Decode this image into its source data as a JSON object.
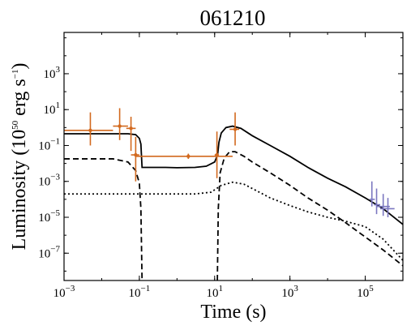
{
  "chart_data": {
    "type": "line",
    "title": "061210",
    "xlabel": "Time (s)",
    "ylabel": "Luminosity (10^50 erg s^-1)",
    "ylabel_parts": {
      "prefix": "Luminosity (10",
      "exp1": "50",
      "mid": " erg s",
      "exp2": "−1",
      "suffix": ")"
    },
    "x_scale": "log",
    "y_scale": "log",
    "xlim": [
      0.001,
      1000000
    ],
    "ylim": [
      3e-09,
      200000
    ],
    "grid": false,
    "legend": "none",
    "x_ticks": [
      {
        "base": "10",
        "exp": "−3",
        "value": 0.001
      },
      {
        "base": "10",
        "exp": "−1",
        "value": 0.1
      },
      {
        "base": "10",
        "exp": "1",
        "value": 10
      },
      {
        "base": "10",
        "exp": "3",
        "value": 1000
      },
      {
        "base": "10",
        "exp": "5",
        "value": 100000
      }
    ],
    "y_ticks": [
      {
        "base": "10",
        "exp": "−7",
        "value": 1e-07
      },
      {
        "base": "10",
        "exp": "−5",
        "value": 1e-05
      },
      {
        "base": "10",
        "exp": "−3",
        "value": 0.001
      },
      {
        "base": "10",
        "exp": "−1",
        "value": 0.1
      },
      {
        "base": "10",
        "exp": "1",
        "value": 10
      },
      {
        "base": "10",
        "exp": "3",
        "value": 1000
      }
    ],
    "series": [
      {
        "style": "solid",
        "color": "#000000",
        "points": [
          [
            0.001,
            0.45
          ],
          [
            0.05,
            0.45
          ],
          [
            0.08,
            0.4
          ],
          [
            0.1,
            0.25
          ],
          [
            0.11,
            0.12
          ],
          [
            0.118,
            0.006
          ],
          [
            0.5,
            0.006
          ],
          [
            1,
            0.0058
          ],
          [
            3,
            0.006
          ],
          [
            6,
            0.007
          ],
          [
            10,
            0.012
          ],
          [
            12,
            0.03
          ],
          [
            13,
            0.15
          ],
          [
            15,
            0.5
          ],
          [
            20,
            1.0
          ],
          [
            30,
            1.2
          ],
          [
            50,
            0.9
          ],
          [
            100,
            0.35
          ],
          [
            300,
            0.1
          ],
          [
            1000,
            0.025
          ],
          [
            3000,
            0.006
          ],
          [
            10000,
            0.0015
          ],
          [
            30000,
            0.0005
          ],
          [
            100000,
            0.00012
          ],
          [
            300000,
            3e-05
          ],
          [
            1000000,
            4e-06
          ]
        ]
      },
      {
        "style": "dashed",
        "color": "#000000",
        "points": [
          [
            0.001,
            0.018
          ],
          [
            0.02,
            0.018
          ],
          [
            0.05,
            0.012
          ],
          [
            0.08,
            0.004
          ],
          [
            0.1,
            0.0008
          ],
          [
            0.11,
            3e-05
          ],
          [
            0.118,
            3e-09
          ]
        ],
        "points2": [
          [
            11.8,
            3e-09
          ],
          [
            12.5,
            3e-05
          ],
          [
            14,
            0.003
          ],
          [
            18,
            0.02
          ],
          [
            25,
            0.045
          ],
          [
            35,
            0.045
          ],
          [
            60,
            0.025
          ],
          [
            100,
            0.012
          ],
          [
            300,
            0.003
          ],
          [
            1000,
            0.0006
          ],
          [
            3000,
            0.00012
          ],
          [
            10000,
            2.5e-05
          ],
          [
            30000,
            5e-06
          ],
          [
            100000,
            8e-07
          ],
          [
            300000,
            1.5e-07
          ],
          [
            1000000,
            2e-08
          ]
        ]
      },
      {
        "style": "dotted",
        "color": "#000000",
        "points": [
          [
            0.001,
            0.0002
          ],
          [
            0.1,
            0.0002
          ],
          [
            0.5,
            0.0002
          ],
          [
            3,
            0.0002
          ],
          [
            8,
            0.00025
          ],
          [
            15,
            0.0006
          ],
          [
            30,
            0.0009
          ],
          [
            60,
            0.0007
          ],
          [
            100,
            0.0004
          ],
          [
            300,
            0.00012
          ],
          [
            1000,
            4.5e-05
          ],
          [
            3000,
            2e-05
          ],
          [
            10000,
            1e-05
          ],
          [
            30000,
            6e-06
          ],
          [
            100000,
            3e-06
          ],
          [
            300000,
            6e-07
          ],
          [
            1000000,
            4e-08
          ]
        ]
      }
    ],
    "data_points": [
      {
        "name": "orange",
        "color": "#d2691e",
        "points": [
          {
            "x": 0.005,
            "y": 0.7,
            "xerr": [
              0.001,
              0.02
            ],
            "yerr": [
              0.1,
              7
            ]
          },
          {
            "x": 0.03,
            "y": 1.2,
            "xerr": [
              0.02,
              0.05
            ],
            "yerr": [
              0.2,
              12
            ]
          },
          {
            "x": 0.06,
            "y": 0.9,
            "xerr": [
              0.045,
              0.08
            ],
            "yerr": [
              0.05,
              4
            ]
          },
          {
            "x": 0.08,
            "y": 0.03,
            "xerr": [
              0.06,
              0.1
            ],
            "yerr": [
              0.001,
              0.3
            ]
          },
          {
            "x": 2,
            "y": 0.025,
            "xerr": [
              0.08,
              30
            ],
            "yerr": [
              0.018,
              0.035
            ]
          },
          {
            "x": 11.5,
            "y": 0.03,
            "xerr": [
              10,
              13
            ],
            "yerr": [
              0.0015,
              0.6
            ]
          },
          {
            "x": 35,
            "y": 0.8,
            "xerr": [
              25,
              45
            ],
            "yerr": [
              0.1,
              7
            ]
          }
        ]
      },
      {
        "name": "purple",
        "color": "#7b77c0",
        "points": [
          {
            "x": 150000,
            "y": 0.0001,
            "xerr": [
              130000,
              180000
            ],
            "yerr": [
              4e-05,
              0.001
            ]
          },
          {
            "x": 200000,
            "y": 5e-05,
            "xerr": [
              170000,
              250000
            ],
            "yerr": [
              1.5e-05,
              0.0004
            ]
          },
          {
            "x": 300000,
            "y": 4e-05,
            "xerr": [
              200000,
              450000
            ],
            "yerr": [
              1.2e-05,
              0.0002
            ]
          },
          {
            "x": 400000,
            "y": 3e-05,
            "xerr": [
              250000,
              600000
            ],
            "yerr": [
              1e-05,
              0.00012
            ]
          }
        ]
      }
    ]
  }
}
